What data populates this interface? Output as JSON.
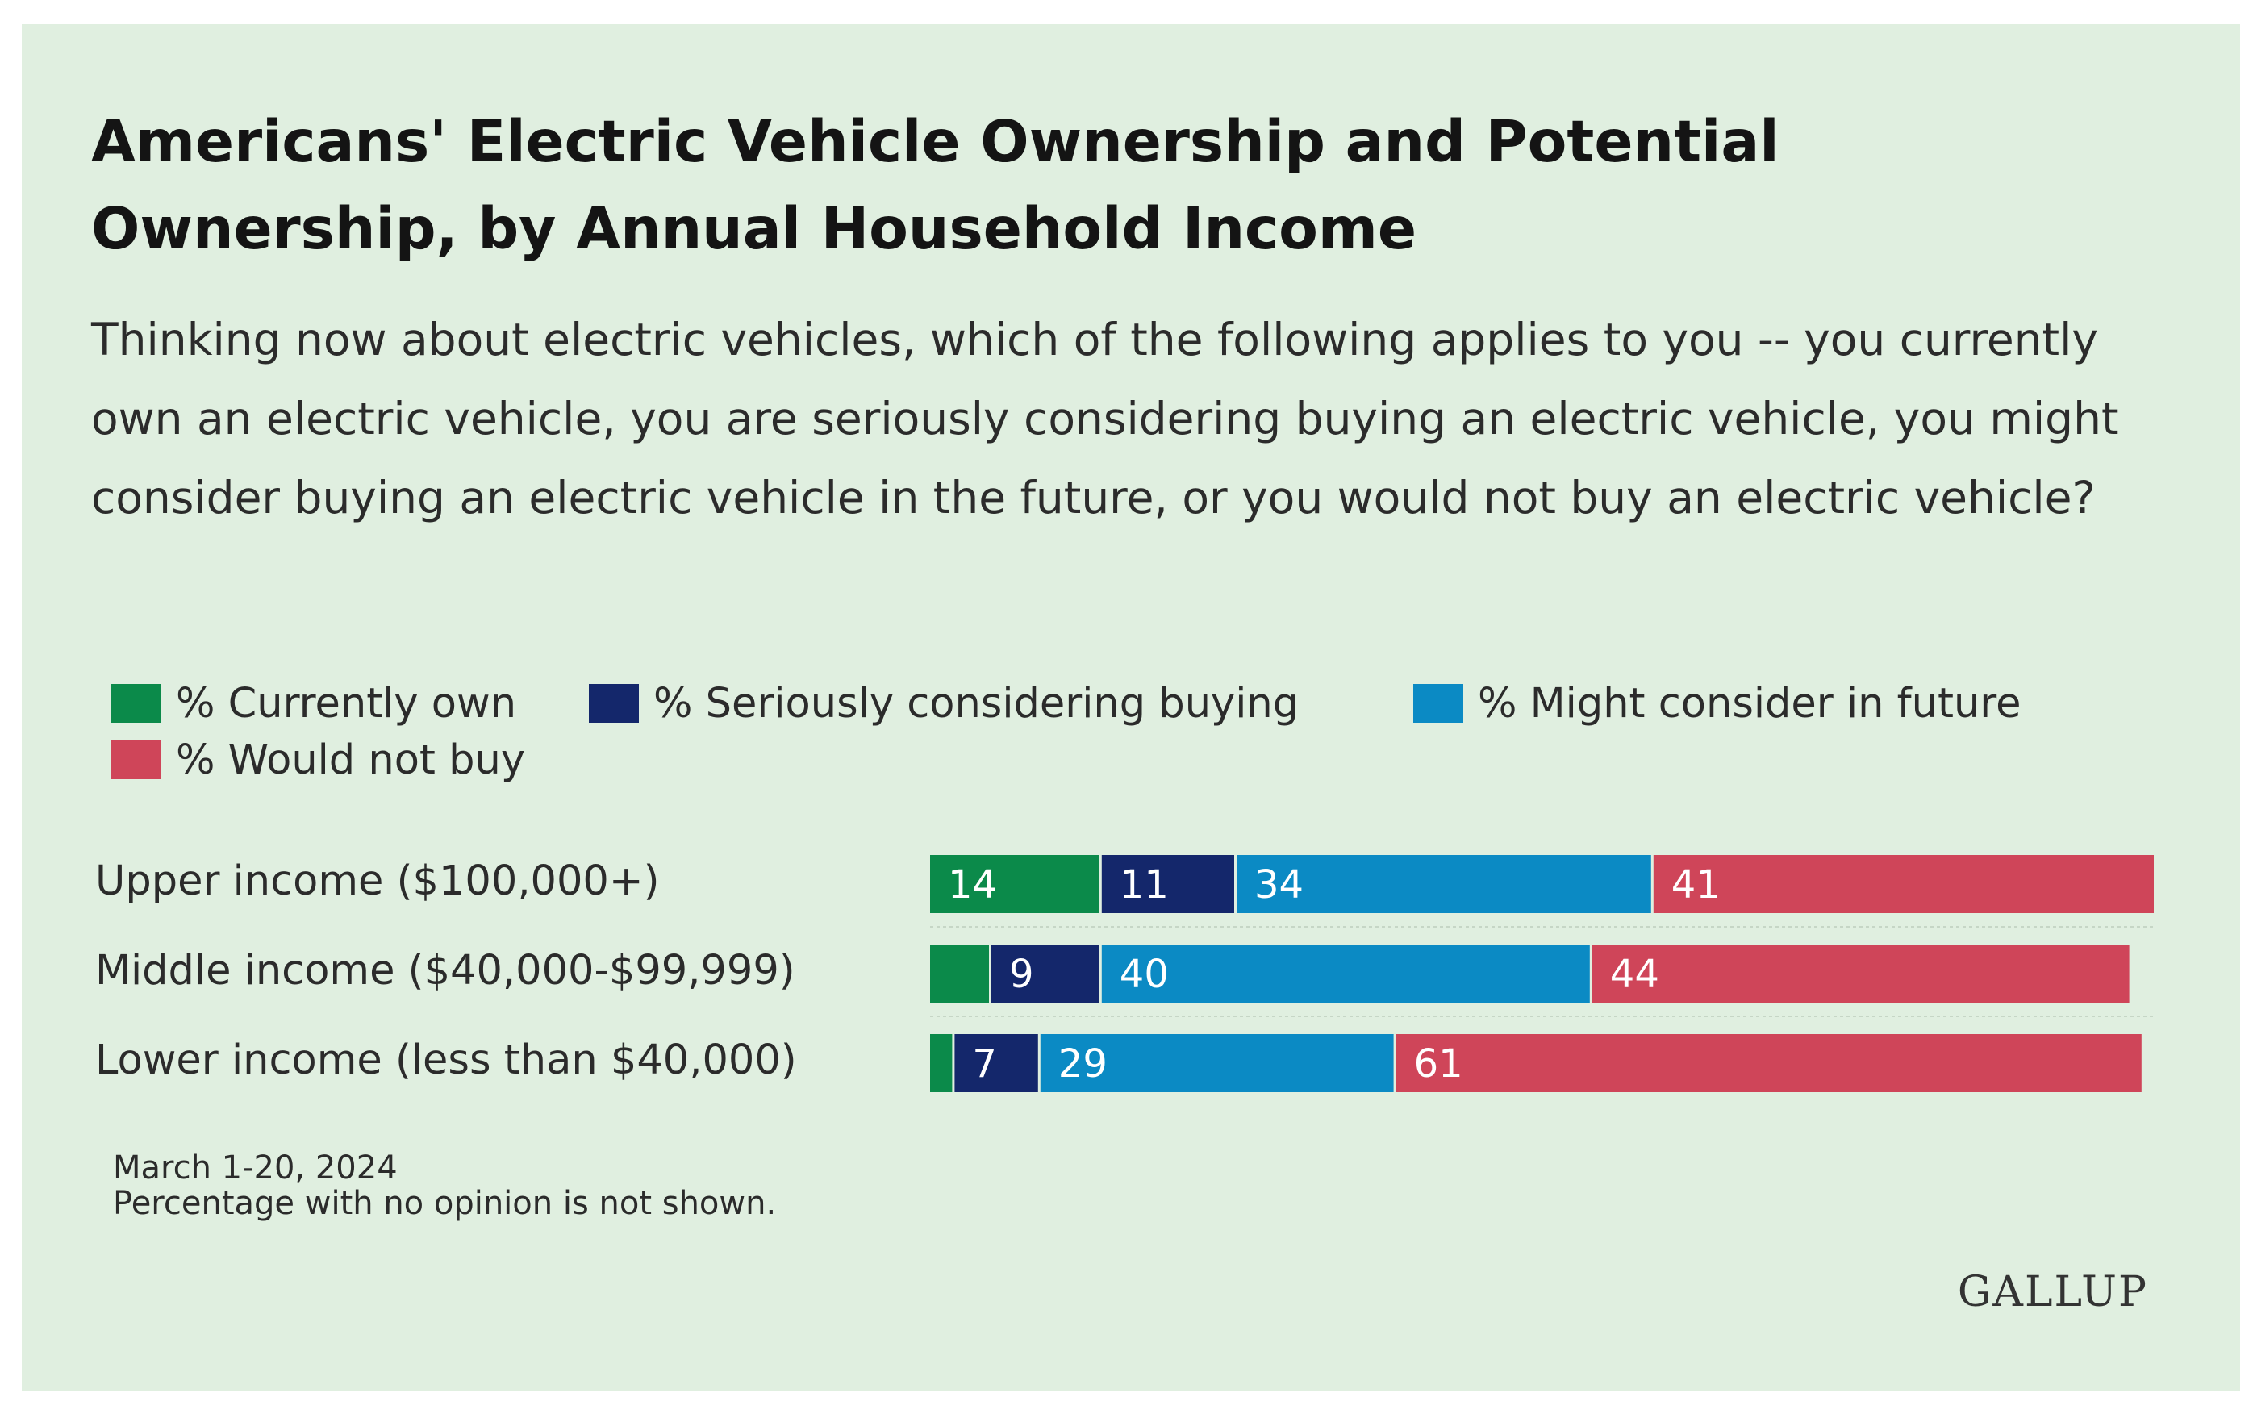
{
  "title": "Americans' Electric Vehicle Ownership and Potential Ownership, by Annual Household Income",
  "subtitle": "Thinking now about electric vehicles, which of the following applies to you -- you currently own an electric vehicle, you are seriously considering buying an electric vehicle, you might consider buying an electric vehicle in the future, or you would not buy an electric vehicle?",
  "legend": [
    {
      "label": "% Currently own",
      "color": "#0b8a4a"
    },
    {
      "label": "% Seriously considering buying",
      "color": "#14276b"
    },
    {
      "label": "% Might consider in future",
      "color": "#0b8ac4"
    },
    {
      "label": "% Would not buy",
      "color": "#cf4559"
    }
  ],
  "footer": {
    "date": "March 1-20, 2024",
    "note": "Percentage with no opinion is not shown."
  },
  "logo_text": "GALLUP",
  "chart_data": {
    "type": "bar",
    "orientation": "horizontal",
    "stacked": true,
    "categories": [
      "Upper income ($100,000+)",
      "Middle income ($40,000-$99,999)",
      "Lower income (less than $40,000)"
    ],
    "series": [
      {
        "name": "% Currently own",
        "values": [
          14,
          5,
          2
        ],
        "labels": [
          "14",
          "",
          ""
        ],
        "color": "#0b8a4a"
      },
      {
        "name": "% Seriously considering buying",
        "values": [
          11,
          9,
          7
        ],
        "labels": [
          "11",
          "9",
          "7"
        ],
        "color": "#14276b"
      },
      {
        "name": "% Might consider in future",
        "values": [
          34,
          40,
          29
        ],
        "labels": [
          "34",
          "40",
          "29"
        ],
        "color": "#0b8ac4"
      },
      {
        "name": "% Would not buy",
        "values": [
          41,
          44,
          61
        ],
        "labels": [
          "41",
          "44",
          "61"
        ],
        "color": "#cf4559"
      }
    ],
    "xlim": [
      0,
      100
    ],
    "legend_position": "top"
  }
}
